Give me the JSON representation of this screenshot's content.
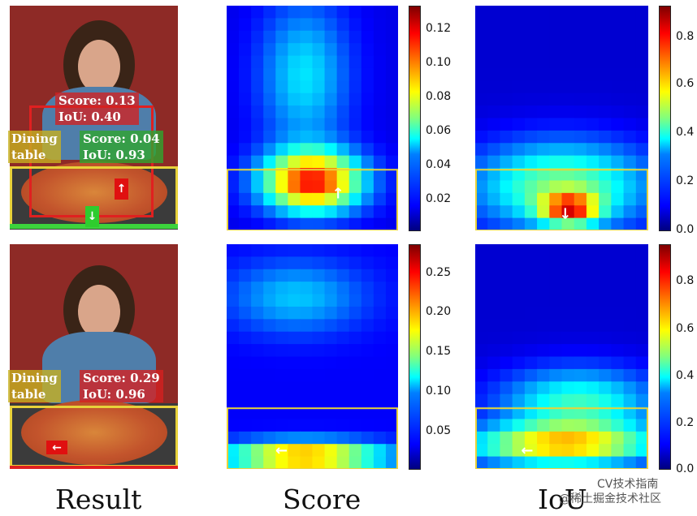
{
  "rows": [
    {
      "result": {
        "labels": [
          {
            "text": "Score: 0.13\nIoU: 0.40",
            "color": "#d42020"
          },
          {
            "text": "Dining\ntable",
            "color": "#c7b020"
          },
          {
            "text": "Score: 0.04\nIoU: 0.93",
            "color": "#2fa52f"
          }
        ]
      },
      "score_colorbar": {
        "ticks": [
          "0.12",
          "0.10",
          "0.08",
          "0.06",
          "0.04",
          "0.02"
        ]
      },
      "iou_colorbar": {
        "ticks": [
          "0.8",
          "0.6",
          "0.4",
          "0.2",
          "0.0"
        ]
      }
    },
    {
      "result": {
        "labels": [
          {
            "text": "Dining\ntable",
            "color": "#c7b020"
          },
          {
            "text": "Score: 0.29\nIoU: 0.96",
            "color": "#d42020"
          }
        ]
      },
      "score_colorbar": {
        "ticks": [
          "0.25",
          "0.20",
          "0.15",
          "0.10",
          "0.05"
        ]
      },
      "iou_colorbar": {
        "ticks": [
          "0.8",
          "0.6",
          "0.4",
          "0.2",
          "0.0"
        ]
      }
    }
  ],
  "captions": {
    "result": "Result",
    "score": "Score",
    "iou": "IoU"
  },
  "watermark": "@稀土掘金技术社区",
  "watermark2": "CV技术指南",
  "colors": {
    "box_yellow": "#e8d23a",
    "box_red": "#e02020",
    "box_green": "#3cd33c",
    "arrow_red": "#e01010",
    "arrow_green": "#2ecc2e"
  }
}
